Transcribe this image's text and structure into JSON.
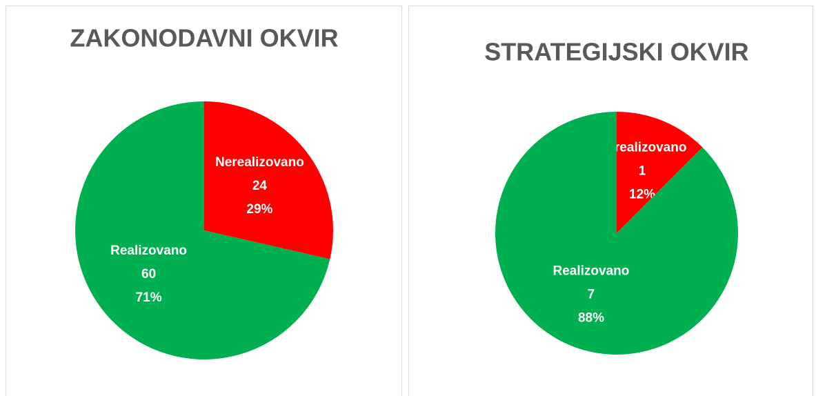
{
  "chart_data": [
    {
      "type": "pie",
      "title": "ZAKONODAVNI OKVIR",
      "categories": [
        "Nerealizovano",
        "Realizovano"
      ],
      "values": [
        24,
        60
      ],
      "percent_labels": [
        "29%",
        "71%"
      ],
      "colors": [
        "#ff0000",
        "#00b050"
      ]
    },
    {
      "type": "pie",
      "title": "STRATEGIJSKI OKVIR",
      "categories": [
        "Nerealizovano",
        "Realizovano"
      ],
      "values": [
        1,
        7
      ],
      "percent_labels": [
        "12%",
        "88%"
      ],
      "colors": [
        "#ff0000",
        "#00b050"
      ]
    }
  ]
}
